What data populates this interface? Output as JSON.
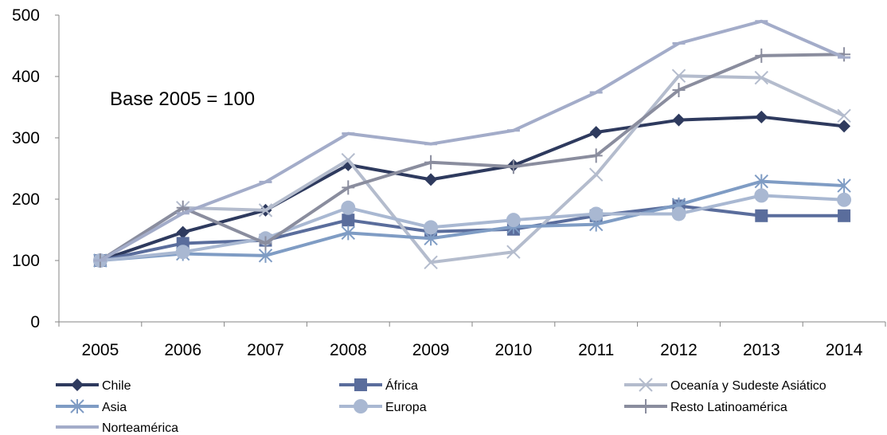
{
  "chart_data": {
    "type": "line",
    "title": "",
    "xlabel": "",
    "ylabel": "",
    "annotation": "Base 2005 = 100",
    "categories": [
      "2005",
      "2006",
      "2007",
      "2008",
      "2009",
      "2010",
      "2011",
      "2012",
      "2013",
      "2014"
    ],
    "ylim": [
      0,
      500
    ],
    "yticks": [
      0,
      100,
      200,
      300,
      400,
      500
    ],
    "grid": false,
    "legend_position": "bottom",
    "series": [
      {
        "name": "Chile",
        "marker": "diamond",
        "color": "#2e3a5e",
        "values": [
          100,
          146,
          182,
          256,
          232,
          255,
          309,
          329,
          334,
          319
        ]
      },
      {
        "name": "África",
        "marker": "square",
        "color": "#5a6d9c",
        "values": [
          100,
          128,
          133,
          166,
          147,
          151,
          173,
          189,
          173,
          173
        ]
      },
      {
        "name": "Oceanía y Sudeste Asiático",
        "marker": "x",
        "color": "#b4bccd",
        "values": [
          100,
          186,
          182,
          264,
          97,
          114,
          240,
          401,
          398,
          336
        ]
      },
      {
        "name": "Asia",
        "marker": "asterisk",
        "color": "#7f9cc4",
        "values": [
          100,
          111,
          108,
          145,
          136,
          155,
          159,
          191,
          229,
          222
        ]
      },
      {
        "name": "Europa",
        "marker": "circle",
        "color": "#a9b8d2",
        "values": [
          100,
          114,
          136,
          186,
          154,
          166,
          176,
          176,
          206,
          199
        ]
      },
      {
        "name": "Resto Latinoamérica",
        "marker": "plus",
        "color": "#8a8d9e",
        "values": [
          100,
          186,
          128,
          219,
          260,
          253,
          271,
          378,
          434,
          436
        ]
      },
      {
        "name": "Norteamérica",
        "marker": "dash",
        "color": "#a3acc9",
        "values": [
          100,
          177,
          228,
          307,
          290,
          312,
          374,
          454,
          490,
          431
        ]
      }
    ]
  }
}
